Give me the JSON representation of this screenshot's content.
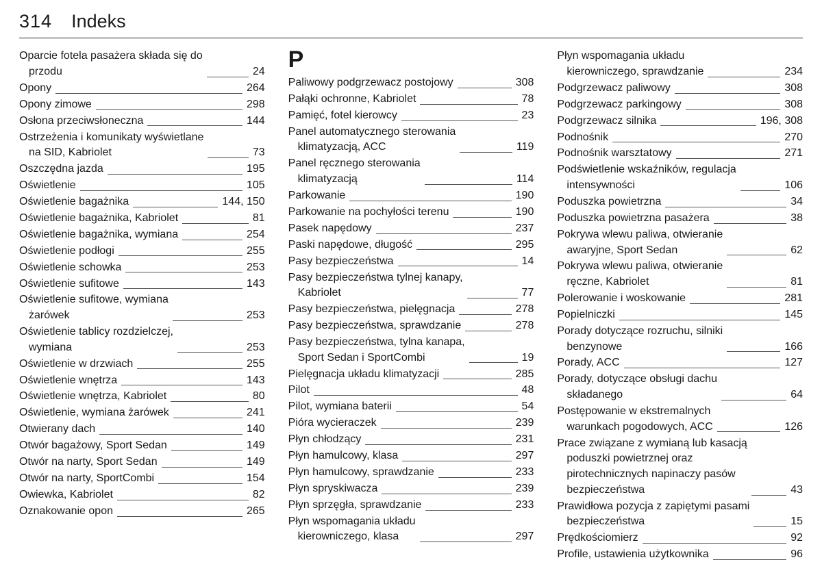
{
  "page_number": "314",
  "page_title": "Indeks",
  "section_letters": {
    "col2": "P"
  },
  "columns": [
    [
      {
        "label": "Oparcie fotela pasażera składa się do",
        "cont": "przodu",
        "pages": "24"
      },
      {
        "label": "Opony",
        "pages": "264"
      },
      {
        "label": "Opony zimowe",
        "pages": "298"
      },
      {
        "label": "Osłona przeciwsłoneczna",
        "pages": "144"
      },
      {
        "label": "Ostrzeżenia i komunikaty wyświetlane",
        "cont": "na SID, Kabriolet",
        "pages": "73"
      },
      {
        "label": "Oszczędna jazda",
        "pages": "195"
      },
      {
        "label": "Oświetlenie",
        "pages": "105"
      },
      {
        "label": "Oświetlenie bagażnika",
        "pages": "144, 150"
      },
      {
        "label": "Oświetlenie bagażnika, Kabriolet",
        "pages": "81"
      },
      {
        "label": "Oświetlenie bagażnika, wymiana",
        "pages": "254"
      },
      {
        "label": "Oświetlenie podłogi",
        "pages": "255"
      },
      {
        "label": "Oświetlenie schowka",
        "pages": "253"
      },
      {
        "label": "Oświetlenie sufitowe",
        "pages": "143"
      },
      {
        "label": "Oświetlenie sufitowe, wymiana",
        "cont": "żarówek",
        "pages": "253"
      },
      {
        "label": "Oświetlenie tablicy rozdzielczej,",
        "cont": "wymiana",
        "pages": "253"
      },
      {
        "label": "Oświetlenie w drzwiach",
        "pages": "255"
      },
      {
        "label": "Oświetlenie wnętrza",
        "pages": "143"
      },
      {
        "label": "Oświetlenie wnętrza, Kabriolet",
        "pages": "80"
      },
      {
        "label": "Oświetlenie, wymiana żarówek",
        "pages": "241"
      },
      {
        "label": "Otwierany dach",
        "pages": "140"
      },
      {
        "label": "Otwór bagażowy, Sport Sedan",
        "pages": "149"
      },
      {
        "label": "Otwór na narty, Sport Sedan",
        "pages": "149"
      },
      {
        "label": "Otwór na narty, SportCombi",
        "pages": "154"
      },
      {
        "label": "Owiewka, Kabriolet",
        "pages": "82"
      },
      {
        "label": "Oznakowanie opon",
        "pages": "265"
      }
    ],
    [
      {
        "label": "Paliwowy podgrzewacz postojowy",
        "pages": "308"
      },
      {
        "label": "Pałąki ochronne, Kabriolet",
        "pages": "78"
      },
      {
        "label": "Pamięć, fotel kierowcy",
        "pages": "23"
      },
      {
        "label": "Panel automatycznego sterowania",
        "cont": "klimatyzacją, ACC",
        "pages": "119"
      },
      {
        "label": "Panel ręcznego sterowania",
        "cont": "klimatyzacją",
        "pages": "114"
      },
      {
        "label": "Parkowanie",
        "pages": "190"
      },
      {
        "label": "Parkowanie na pochyłości terenu",
        "pages": "190"
      },
      {
        "label": "Pasek napędowy",
        "pages": "237"
      },
      {
        "label": "Paski napędowe, długość",
        "pages": "295"
      },
      {
        "label": "Pasy bezpieczeństwa",
        "pages": "14"
      },
      {
        "label": "Pasy bezpieczeństwa tylnej kanapy,",
        "cont": "Kabriolet",
        "pages": "77"
      },
      {
        "label": "Pasy bezpieczeństwa, pielęgnacja",
        "pages": "278"
      },
      {
        "label": "Pasy bezpieczeństwa, sprawdzanie",
        "pages": "278"
      },
      {
        "label": "Pasy bezpieczeństwa, tylna kanapa,",
        "cont": "Sport Sedan i SportCombi",
        "pages": "19"
      },
      {
        "label": "Pielęgnacja układu klimatyzacji",
        "pages": "285"
      },
      {
        "label": "Pilot",
        "pages": "48"
      },
      {
        "label": "Pilot, wymiana baterii",
        "pages": "54"
      },
      {
        "label": "Pióra wycieraczek",
        "pages": "239"
      },
      {
        "label": "Płyn chłodzący",
        "pages": "231"
      },
      {
        "label": "Płyn hamulcowy, klasa",
        "pages": "297"
      },
      {
        "label": "Płyn hamulcowy, sprawdzanie",
        "pages": "233"
      },
      {
        "label": "Płyn spryskiwacza",
        "pages": "239"
      },
      {
        "label": "Płyn sprzęgła, sprawdzanie",
        "pages": "233"
      },
      {
        "label": "Płyn wspomagania układu",
        "cont": "kierowniczego, klasa",
        "pages": "297"
      }
    ],
    [
      {
        "label": "Płyn wspomagania układu",
        "cont": "kierowniczego, sprawdzanie",
        "pages": "234"
      },
      {
        "label": "Podgrzewacz paliwowy",
        "pages": "308"
      },
      {
        "label": "Podgrzewacz parkingowy",
        "pages": "308"
      },
      {
        "label": "Podgrzewacz silnika",
        "pages": "196, 308"
      },
      {
        "label": "Podnośnik",
        "pages": "270"
      },
      {
        "label": "Podnośnik warsztatowy",
        "pages": "271"
      },
      {
        "label": "Podświetlenie wskaźników, regulacja",
        "cont": "intensywności",
        "pages": "106"
      },
      {
        "label": "Poduszka powietrzna",
        "pages": "34"
      },
      {
        "label": "Poduszka powietrzna pasażera",
        "pages": "38"
      },
      {
        "label": "Pokrywa wlewu paliwa, otwieranie",
        "cont": "awaryjne, Sport Sedan",
        "pages": "62"
      },
      {
        "label": "Pokrywa wlewu paliwa, otwieranie",
        "cont": "ręczne, Kabriolet",
        "pages": "81"
      },
      {
        "label": "Polerowanie i woskowanie",
        "pages": "281"
      },
      {
        "label": "Popielniczki",
        "pages": "145"
      },
      {
        "label": "Porady dotyczące rozruchu, silniki",
        "cont": "benzynowe",
        "pages": "166"
      },
      {
        "label": "Porady, ACC",
        "pages": "127"
      },
      {
        "label": "Porady, dotyczące obsługi dachu",
        "cont": "składanego",
        "pages": "64"
      },
      {
        "label": "Postępowanie w ekstremalnych",
        "cont": "warunkach pogodowych, ACC",
        "pages": "126"
      },
      {
        "label": "Prace związane z wymianą lub kasacją",
        "cont": "poduszki powietrznej oraz",
        "cont2": "pirotechnicznych napinaczy pasów",
        "cont3": "bezpieczeństwa",
        "pages": "43"
      },
      {
        "label": "Prawidłowa pozycja z zapiętymi pasami",
        "cont": "bezpieczeństwa",
        "pages": "15"
      },
      {
        "label": "Prędkościomierz",
        "pages": "92"
      },
      {
        "label": "Profile, ustawienia użytkownika",
        "pages": "96"
      }
    ]
  ]
}
